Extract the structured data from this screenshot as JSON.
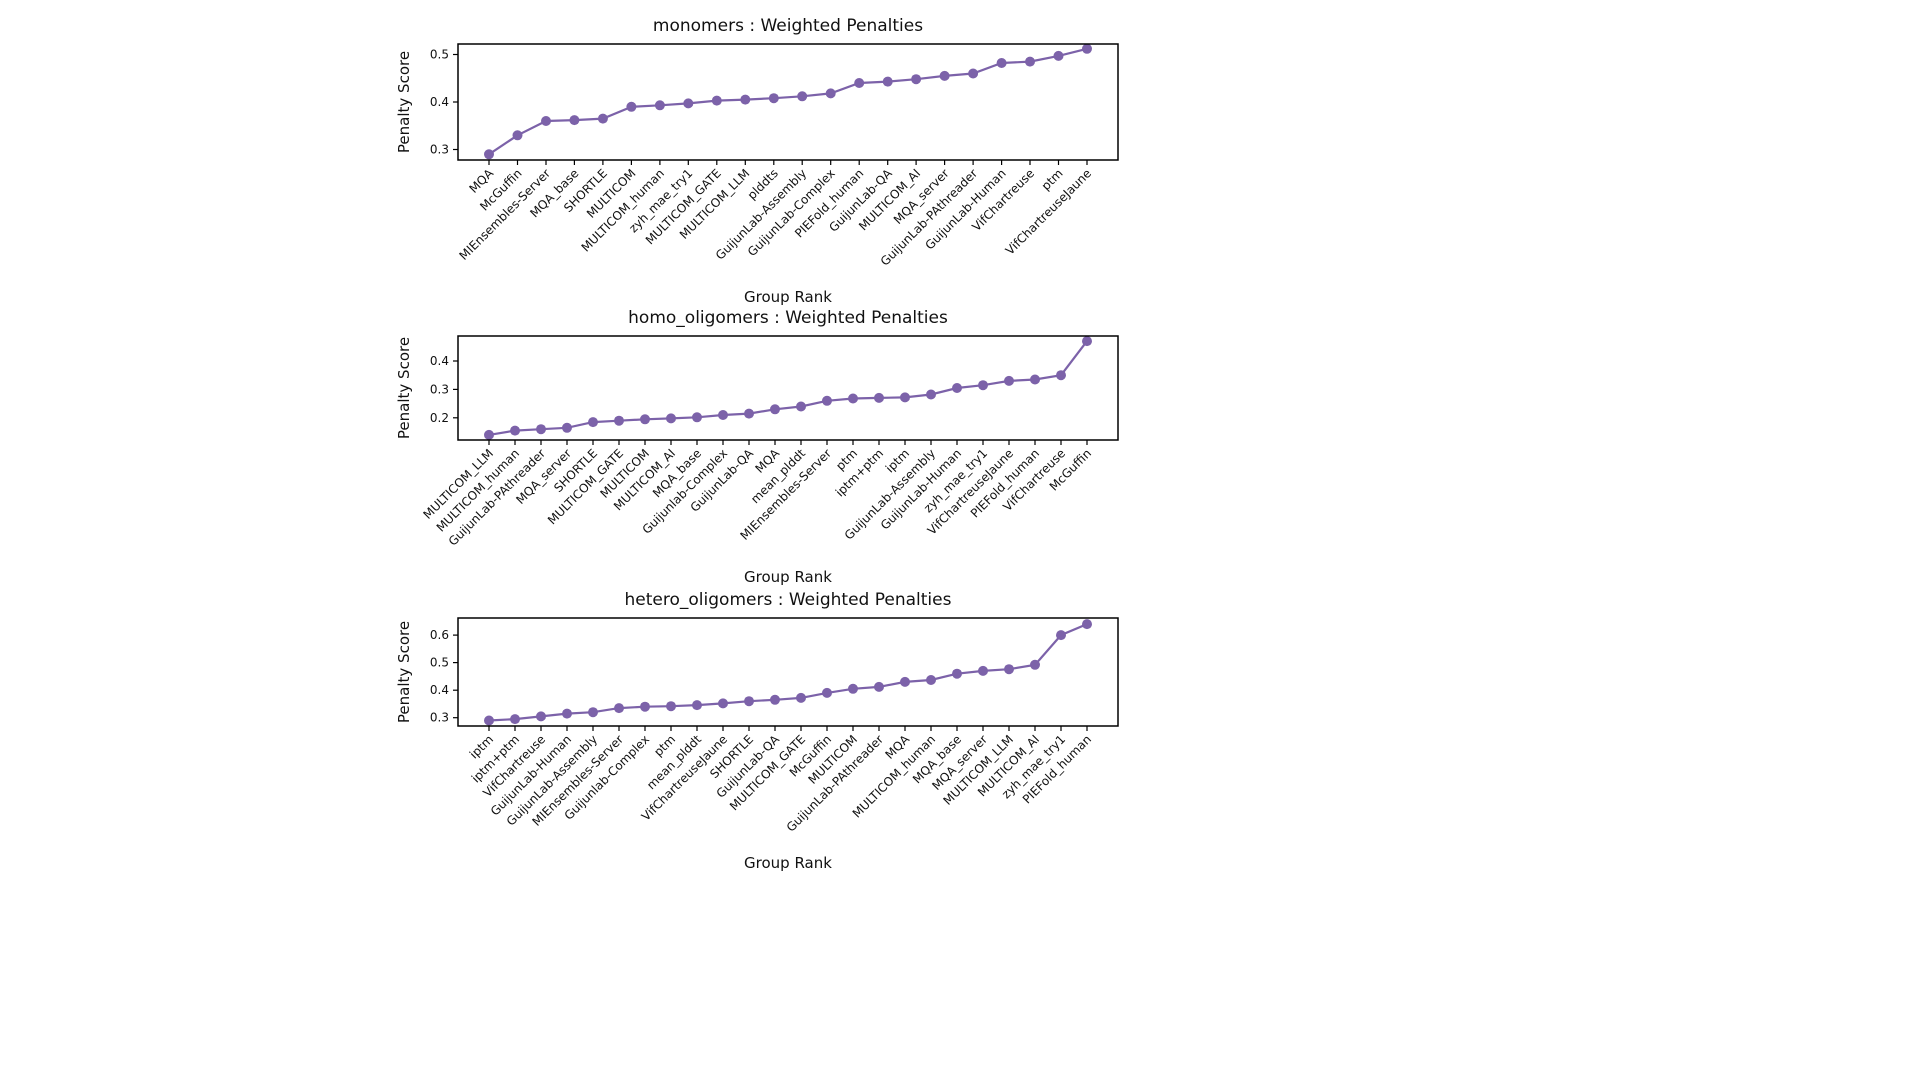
{
  "page": {
    "background": "#ffffff"
  },
  "chart_data": [
    {
      "type": "line",
      "title": "monomers : Weighted Penalties",
      "xlabel": "Group Rank",
      "ylabel": "Penalty Score",
      "line_color": "#7c62a9",
      "marker": "circle",
      "grid": false,
      "legend": "none",
      "yticks": [
        0.3,
        0.4,
        0.5
      ],
      "ylim": [
        0.278,
        0.522
      ],
      "categories": [
        "MQA",
        "McGuffin",
        "MIEnsembles-Server",
        "MQA_base",
        "SHORTLE",
        "MULTICOM",
        "MULTICOM_human",
        "zyh_mae_try1",
        "MULTICOM_GATE",
        "MULTICOM_LLM",
        "plddts",
        "GuijunLab-Assembly",
        "GuijunLab-Complex",
        "PIEFold_human",
        "GuijunLab-QA",
        "MULTICOM_AI",
        "MQA_server",
        "GuijunLab-PAthreader",
        "GuijunLab-Human",
        "VifChartreuse",
        "ptm",
        "VifChartreuseJaune"
      ],
      "values": [
        0.29,
        0.33,
        0.36,
        0.362,
        0.365,
        0.39,
        0.393,
        0.397,
        0.403,
        0.405,
        0.408,
        0.412,
        0.418,
        0.44,
        0.443,
        0.448,
        0.455,
        0.46,
        0.482,
        0.485,
        0.497,
        0.512
      ]
    },
    {
      "type": "line",
      "title": "homo_oligomers : Weighted Penalties",
      "xlabel": "Group Rank",
      "ylabel": "Penalty Score",
      "line_color": "#7c62a9",
      "marker": "circle",
      "grid": false,
      "legend": "none",
      "yticks": [
        0.2,
        0.3,
        0.4
      ],
      "ylim": [
        0.122,
        0.488
      ],
      "categories": [
        "MULTICOM_LLM",
        "MULTICOM_human",
        "GuijunLab-PAthreader",
        "MQA_server",
        "SHORTLE",
        "MULTICOM_GATE",
        "MULTICOM",
        "MULTICOM_AI",
        "MQA_base",
        "Guijunlab-Complex",
        "GuijunLab-QA",
        "MQA",
        "mean_plddt",
        "MIEnsembles-Server",
        "ptm",
        "iptm+ptm",
        "iptm",
        "GuijunLab-Assembly",
        "GuijunLab-Human",
        "zyh_mae_try1",
        "VifChartreuseJaune",
        "PIEFold_human",
        "VifChartreuse",
        "McGuffin"
      ],
      "values": [
        0.14,
        0.155,
        0.16,
        0.165,
        0.185,
        0.19,
        0.195,
        0.198,
        0.202,
        0.21,
        0.215,
        0.23,
        0.24,
        0.26,
        0.268,
        0.27,
        0.272,
        0.282,
        0.305,
        0.315,
        0.33,
        0.335,
        0.35,
        0.47
      ]
    },
    {
      "type": "line",
      "title": "hetero_oligomers : Weighted Penalties",
      "xlabel": "Group Rank",
      "ylabel": "Penalty Score",
      "line_color": "#7c62a9",
      "marker": "circle",
      "grid": false,
      "legend": "none",
      "yticks": [
        0.3,
        0.4,
        0.5,
        0.6
      ],
      "ylim": [
        0.27,
        0.662
      ],
      "categories": [
        "iptm",
        "iptm+ptm",
        "VifChartreuse",
        "GuijunLab-Human",
        "GuijunLab-Assembly",
        "MIEnsembles-Server",
        "Guijunlab-Complex",
        "ptm",
        "mean_plddt",
        "VifChartreuseJaune",
        "SHORTLE",
        "GuijunLab-QA",
        "MULTICOM_GATE",
        "McGuffin",
        "MULTICOM",
        "GuijunLab-PAthreader",
        "MQA",
        "MULTICOM_human",
        "MQA_base",
        "MQA_server",
        "MULTICOM_LLM",
        "MULTICOM_AI",
        "zyh_mae_try1",
        "PIEFold_human"
      ],
      "values": [
        0.29,
        0.295,
        0.305,
        0.315,
        0.32,
        0.335,
        0.34,
        0.342,
        0.346,
        0.352,
        0.36,
        0.365,
        0.372,
        0.39,
        0.405,
        0.412,
        0.43,
        0.437,
        0.46,
        0.47,
        0.476,
        0.492,
        0.6,
        0.64
      ]
    }
  ]
}
